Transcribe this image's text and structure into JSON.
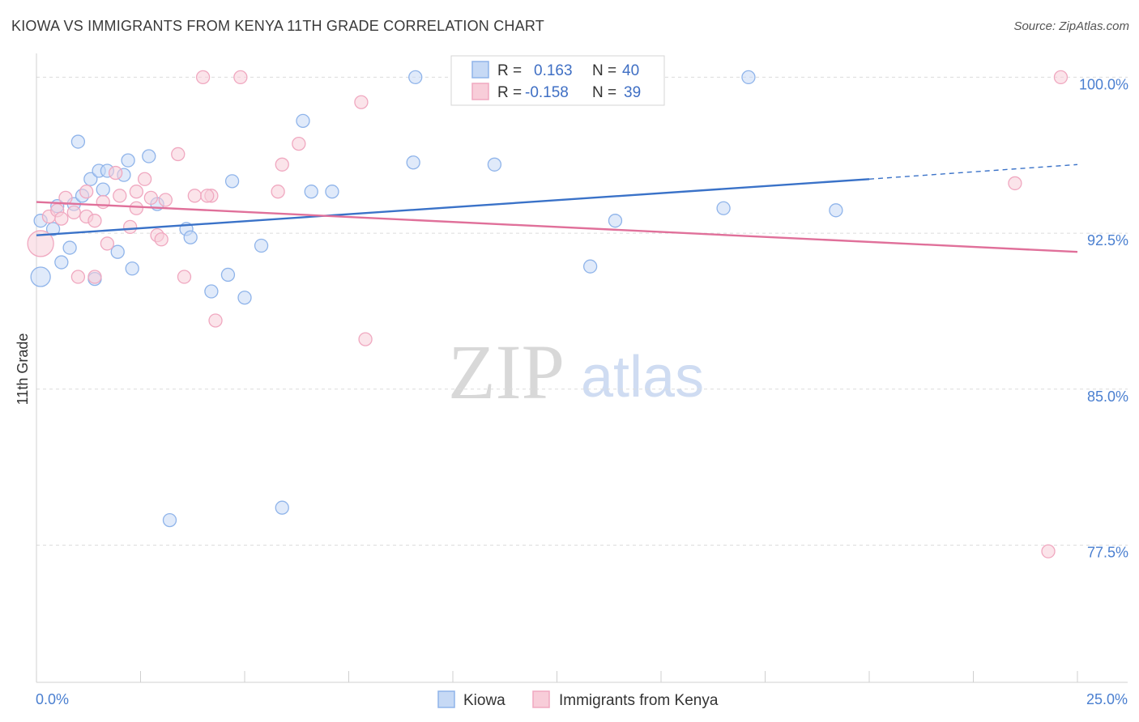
{
  "title": "KIOWA VS IMMIGRANTS FROM KENYA 11TH GRADE CORRELATION CHART",
  "source": "Source: ZipAtlas.com",
  "watermark": {
    "zip": "ZIP",
    "atlas": "atlas"
  },
  "chart_data": {
    "type": "scatter",
    "title": "KIOWA VS IMMIGRANTS FROM KENYA 11TH GRADE CORRELATION CHART",
    "xlabel": "",
    "ylabel": "11th Grade",
    "xlim": [
      0,
      25
    ],
    "ylim": [
      70.9,
      101.3
    ],
    "x_tick_labels": [
      {
        "value": 0,
        "label": "0.0%"
      },
      {
        "value": 25,
        "label": "25.0%"
      }
    ],
    "y_tick_labels": [
      {
        "value": 100.0,
        "label": "100.0%"
      },
      {
        "value": 92.5,
        "label": "92.5%"
      },
      {
        "value": 85.0,
        "label": "85.0%"
      },
      {
        "value": 77.5,
        "label": "77.5%"
      }
    ],
    "x_minor_ticks": [
      0,
      2.5,
      5,
      7.5,
      10,
      12.5,
      15,
      17.5,
      20,
      22.5,
      25
    ],
    "grid": true,
    "legend_position": "bottom-center",
    "stats": [
      {
        "r_label": "R =",
        "r_value": "0.163",
        "n_label": "N =",
        "n_value": "40"
      },
      {
        "r_label": "R =",
        "r_value": "-0.158",
        "n_label": "N =",
        "n_value": "39"
      }
    ],
    "series": [
      {
        "name": "Kiowa",
        "color": "#8fb4ea",
        "fill": "#c6d9f5",
        "line_color": "#3a72c8",
        "trend": {
          "x1": 0,
          "y1": 92.4,
          "x2": 20,
          "y2": 95.1,
          "dash_x2": 25,
          "dash_y2": 95.8
        },
        "points": [
          [
            0.1,
            90.4,
            12
          ],
          [
            0.1,
            93.1,
            8
          ],
          [
            0.4,
            92.7,
            8
          ],
          [
            0.5,
            93.8,
            8
          ],
          [
            0.6,
            91.1,
            8
          ],
          [
            0.8,
            91.8,
            8
          ],
          [
            0.9,
            93.9,
            8
          ],
          [
            1.0,
            96.9,
            8
          ],
          [
            1.1,
            94.3,
            8
          ],
          [
            1.3,
            95.1,
            8
          ],
          [
            1.4,
            90.3,
            8
          ],
          [
            1.5,
            95.5,
            8
          ],
          [
            1.6,
            94.6,
            8
          ],
          [
            1.7,
            95.5,
            8
          ],
          [
            1.95,
            91.6,
            8
          ],
          [
            2.1,
            95.3,
            8
          ],
          [
            2.2,
            96.0,
            8
          ],
          [
            2.3,
            90.8,
            8
          ],
          [
            2.7,
            96.2,
            8
          ],
          [
            2.9,
            93.9,
            8
          ],
          [
            3.2,
            78.7,
            8
          ],
          [
            3.6,
            92.7,
            8
          ],
          [
            3.7,
            92.3,
            8
          ],
          [
            4.2,
            89.7,
            8
          ],
          [
            4.6,
            90.5,
            8
          ],
          [
            4.7,
            95.0,
            8
          ],
          [
            5.0,
            89.4,
            8
          ],
          [
            5.4,
            91.9,
            8
          ],
          [
            5.9,
            79.3,
            8
          ],
          [
            6.4,
            97.9,
            8
          ],
          [
            6.6,
            94.5,
            8
          ],
          [
            7.1,
            94.5,
            8
          ],
          [
            9.1,
            100.0,
            8
          ],
          [
            9.05,
            95.9,
            8
          ],
          [
            11.0,
            95.8,
            8
          ],
          [
            17.1,
            100.0,
            8
          ],
          [
            13.9,
            93.1,
            8
          ],
          [
            13.3,
            90.9,
            8
          ],
          [
            16.5,
            93.7,
            8
          ],
          [
            19.2,
            93.6,
            8
          ]
        ]
      },
      {
        "name": "Immigrants from Kenya",
        "color": "#f0a8c0",
        "fill": "#f8cdd9",
        "line_color": "#e0709a",
        "trend": {
          "x1": 0,
          "y1": 94.0,
          "x2": 25,
          "y2": 91.6
        },
        "points": [
          [
            0.1,
            92.0,
            16
          ],
          [
            0.3,
            93.3,
            8
          ],
          [
            0.5,
            93.6,
            8
          ],
          [
            0.6,
            93.2,
            8
          ],
          [
            0.7,
            94.2,
            8
          ],
          [
            0.9,
            93.5,
            8
          ],
          [
            1.0,
            90.4,
            8
          ],
          [
            1.2,
            94.5,
            8
          ],
          [
            1.2,
            93.3,
            8
          ],
          [
            1.4,
            93.1,
            8
          ],
          [
            1.4,
            90.4,
            8
          ],
          [
            1.6,
            94.0,
            8
          ],
          [
            1.7,
            92.0,
            8
          ],
          [
            1.9,
            95.4,
            8
          ],
          [
            2.0,
            94.3,
            8
          ],
          [
            2.25,
            92.8,
            8
          ],
          [
            2.4,
            93.7,
            8
          ],
          [
            2.4,
            94.5,
            8
          ],
          [
            2.6,
            95.1,
            8
          ],
          [
            2.75,
            94.2,
            8
          ],
          [
            2.9,
            92.4,
            8
          ],
          [
            3.0,
            92.2,
            8
          ],
          [
            3.1,
            94.1,
            8
          ],
          [
            3.4,
            96.3,
            8
          ],
          [
            3.55,
            90.4,
            8
          ],
          [
            3.8,
            94.3,
            8
          ],
          [
            4.0,
            100.0,
            8
          ],
          [
            4.2,
            94.3,
            8
          ],
          [
            4.3,
            88.3,
            8
          ],
          [
            4.9,
            100.0,
            8
          ],
          [
            5.8,
            94.5,
            8
          ],
          [
            5.9,
            95.8,
            8
          ],
          [
            6.3,
            96.8,
            8
          ],
          [
            7.8,
            98.8,
            8
          ],
          [
            7.9,
            87.4,
            8
          ],
          [
            23.5,
            94.9,
            8
          ],
          [
            24.6,
            100.0,
            8
          ],
          [
            24.3,
            77.2,
            8
          ],
          [
            4.1,
            94.3,
            8
          ]
        ]
      }
    ]
  }
}
